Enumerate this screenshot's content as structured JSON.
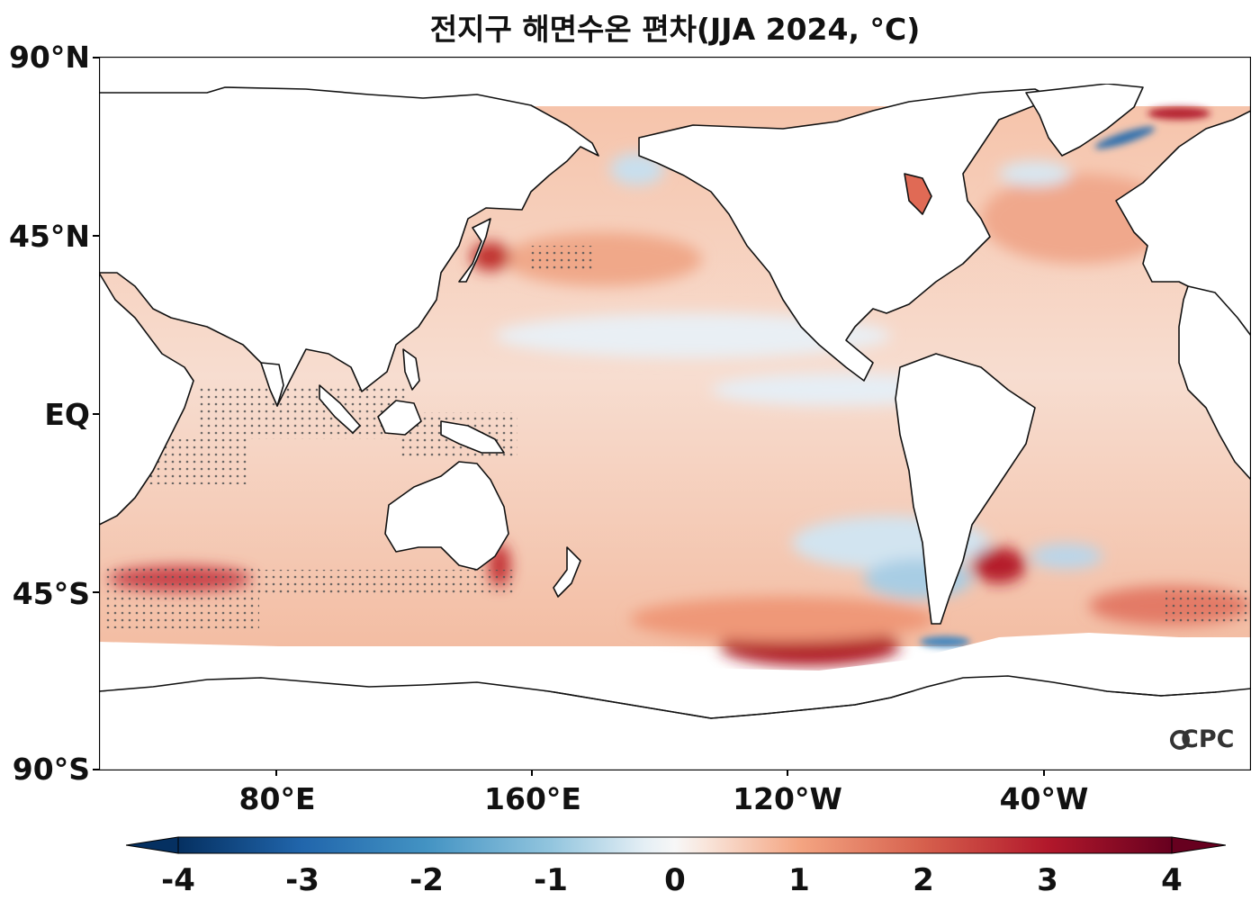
{
  "title": "전지구 해면수온 편차(JJA 2024, °C)",
  "latitude_labels": [
    "90°N",
    "45°N",
    "EQ",
    "45°S",
    "90°S"
  ],
  "longitude_labels": [
    "80°E",
    "160°E",
    "120°W",
    "40°W"
  ],
  "colorbar": {
    "min": -4,
    "max": 4,
    "tick_labels": [
      "-4",
      "-3",
      "-2",
      "-1",
      "0",
      "1",
      "2",
      "3",
      "4"
    ],
    "colors": {
      "cold_end": "#053061",
      "cold_mid": "#4393c3",
      "neutral": "#f7f7f7",
      "warm_mid": "#f4a582",
      "warm_end": "#67001f"
    }
  },
  "logo": "CPC",
  "colors": {
    "land": "#ffffff",
    "coast": "#111111",
    "ocean_mild_warm": "#f6c8b0",
    "ocean_mild_cool": "#dfeaf3",
    "stipple": "#555555"
  }
}
